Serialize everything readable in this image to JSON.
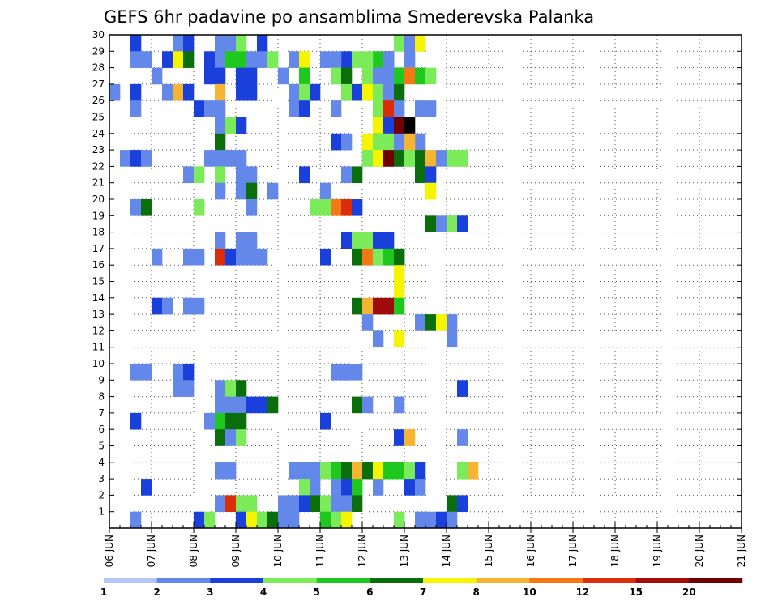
{
  "chart_data": {
    "type": "heatmap",
    "title": "GEFS 6hr padavine po ansamblima Smederevska Palanka",
    "xlabel": "",
    "ylabel": "",
    "x_tick_labels": [
      "06 JUN",
      "07 JUN",
      "08 JUN",
      "09 JUN",
      "10 JUN",
      "11 JUN",
      "12 JUN",
      "13 JUN",
      "14 JUN",
      "15 JUN",
      "16 JUN",
      "17 JUN",
      "18 JUN",
      "19 JUN",
      "20 JUN",
      "21 JUN"
    ],
    "y_tick_labels": [
      "1",
      "2",
      "3",
      "4",
      "5",
      "6",
      "7",
      "8",
      "9",
      "10",
      "11",
      "12",
      "13",
      "14",
      "15",
      "16",
      "17",
      "18",
      "19",
      "20",
      "21",
      "22",
      "23",
      "24",
      "25",
      "26",
      "27",
      "28",
      "29",
      "30"
    ],
    "xlim_days": [
      0,
      15
    ],
    "ylim_members": [
      0,
      30
    ],
    "steps_per_day": 4,
    "grid": "dotted",
    "colorbar": {
      "position": "bottom",
      "labels": [
        "1",
        "2",
        "3",
        "4",
        "5",
        "6",
        "7",
        "8",
        "10",
        "12",
        "15",
        "20"
      ],
      "colors": [
        "#b4c6f8",
        "#6488ea",
        "#1a40dc",
        "#7ceb5a",
        "#1ec81e",
        "#0a6e0a",
        "#f5f500",
        "#f5b432",
        "#f57814",
        "#dc2d0a",
        "#a00a0a",
        "#6e0000"
      ]
    },
    "cells": [
      [
        7,
        30,
        1
      ],
      [
        9,
        30,
        6
      ],
      [
        10,
        30,
        5
      ],
      [
        15,
        30,
        2
      ],
      [
        27,
        30,
        2
      ],
      [
        27,
        29,
        3
      ],
      [
        26,
        28,
        5
      ],
      [
        25,
        28,
        4
      ],
      [
        24,
        28,
        3
      ],
      [
        24,
        27,
        3
      ],
      [
        29,
        30,
        2
      ],
      [
        37,
        30,
        1
      ],
      [
        40,
        30,
        3
      ],
      [
        41,
        30,
        5
      ],
      [
        44,
        30,
        1
      ],
      [
        47,
        30,
        4
      ],
      [
        48,
        30,
        5
      ],
      [
        56,
        30,
        1
      ],
      [
        60,
        30,
        1
      ],
      [
        2,
        29,
        2
      ],
      [
        6,
        29,
        1
      ],
      [
        7,
        29,
        2
      ],
      [
        10,
        29,
        1
      ],
      [
        11,
        29,
        1
      ],
      [
        12,
        29,
        3
      ],
      [
        14,
        29,
        2
      ],
      [
        28,
        29,
        1
      ],
      [
        29,
        29,
        6
      ],
      [
        2,
        28,
        1
      ],
      [
        3,
        28,
        1
      ],
      [
        5,
        28,
        2
      ],
      [
        6,
        28,
        6
      ],
      [
        7,
        28,
        5
      ],
      [
        9,
        28,
        2
      ],
      [
        10,
        28,
        1
      ],
      [
        11,
        28,
        4
      ],
      [
        12,
        28,
        4
      ],
      [
        13,
        28,
        1
      ],
      [
        14,
        28,
        1
      ],
      [
        15,
        28,
        3
      ],
      [
        17,
        28,
        1
      ],
      [
        18,
        28,
        6
      ],
      [
        26,
        28,
        1
      ],
      [
        28,
        28,
        1
      ],
      [
        22,
        28,
        2
      ],
      [
        23,
        28,
        3
      ],
      [
        21,
        28,
        1
      ],
      [
        20,
        28,
        1
      ],
      [
        4,
        27,
        1
      ],
      [
        9,
        27,
        2
      ],
      [
        10,
        27,
        2
      ],
      [
        12,
        27,
        2
      ],
      [
        13,
        27,
        2
      ],
      [
        18,
        27,
        4
      ],
      [
        16,
        27,
        1
      ],
      [
        21,
        27,
        3
      ],
      [
        22,
        27,
        5
      ],
      [
        25,
        27,
        1
      ],
      [
        26,
        27,
        1
      ],
      [
        27,
        27,
        4
      ],
      [
        27,
        27,
        4
      ],
      [
        28,
        27,
        8
      ],
      [
        29,
        27,
        4
      ],
      [
        30,
        27,
        3
      ],
      [
        0,
        26,
        1
      ],
      [
        2,
        26,
        2
      ],
      [
        5,
        26,
        1
      ],
      [
        6,
        26,
        7
      ],
      [
        7,
        26,
        2
      ],
      [
        10,
        26,
        7
      ],
      [
        12,
        26,
        2
      ],
      [
        13,
        26,
        2
      ],
      [
        17,
        26,
        1
      ],
      [
        18,
        26,
        3
      ],
      [
        19,
        26,
        2
      ],
      [
        22,
        26,
        3
      ],
      [
        23,
        26,
        2
      ],
      [
        24,
        26,
        6
      ],
      [
        25,
        26,
        3
      ],
      [
        26,
        26,
        1
      ],
      [
        27,
        26,
        5
      ],
      [
        2,
        25,
        1
      ],
      [
        8,
        25,
        2
      ],
      [
        9,
        25,
        1
      ],
      [
        10,
        25,
        1
      ],
      [
        17,
        25,
        1
      ],
      [
        18,
        25,
        2
      ],
      [
        25,
        25,
        3
      ],
      [
        26,
        25,
        9
      ],
      [
        27,
        25,
        1
      ],
      [
        29,
        25,
        1
      ],
      [
        30,
        25,
        1
      ],
      [
        21,
        25,
        1
      ],
      [
        10,
        24,
        1
      ],
      [
        11,
        24,
        3
      ],
      [
        12,
        24,
        2
      ],
      [
        25,
        24,
        6
      ],
      [
        26,
        24,
        2
      ],
      [
        27,
        24,
        11
      ],
      [
        28,
        24,
        12
      ],
      [
        10,
        23,
        5
      ],
      [
        24,
        23,
        6
      ],
      [
        25,
        23,
        5
      ],
      [
        25,
        23,
        3
      ],
      [
        26,
        23,
        3
      ],
      [
        27,
        23,
        1
      ],
      [
        28,
        23,
        1
      ],
      [
        29,
        23,
        1
      ],
      [
        28,
        23,
        7
      ],
      [
        21,
        23,
        2
      ],
      [
        22,
        23,
        1
      ],
      [
        1,
        22,
        1
      ],
      [
        2,
        22,
        2
      ],
      [
        3,
        22,
        1
      ],
      [
        9,
        22,
        1
      ],
      [
        10,
        22,
        1
      ],
      [
        11,
        22,
        1
      ],
      [
        12,
        22,
        1
      ],
      [
        24,
        22,
        3
      ],
      [
        25,
        22,
        6
      ],
      [
        26,
        22,
        11
      ],
      [
        27,
        22,
        5
      ],
      [
        28,
        22,
        3
      ],
      [
        29,
        22,
        5
      ],
      [
        30,
        22,
        7
      ],
      [
        31,
        22,
        1
      ],
      [
        32,
        22,
        3
      ],
      [
        33,
        22,
        3
      ],
      [
        7,
        21,
        1
      ],
      [
        8,
        21,
        3
      ],
      [
        10,
        21,
        3
      ],
      [
        12,
        21,
        1
      ],
      [
        13,
        21,
        1
      ],
      [
        18,
        21,
        2
      ],
      [
        22,
        21,
        1
      ],
      [
        23,
        21,
        5
      ],
      [
        29,
        21,
        5
      ],
      [
        30,
        21,
        2
      ],
      [
        10,
        20,
        1
      ],
      [
        12,
        20,
        1
      ],
      [
        13,
        20,
        5
      ],
      [
        15,
        20,
        1
      ],
      [
        20,
        20,
        1
      ],
      [
        30,
        20,
        6
      ],
      [
        2,
        19,
        1
      ],
      [
        3,
        19,
        5
      ],
      [
        8,
        19,
        3
      ],
      [
        13,
        19,
        1
      ],
      [
        19,
        19,
        3
      ],
      [
        20,
        19,
        3
      ],
      [
        21,
        19,
        8
      ],
      [
        22,
        19,
        9
      ],
      [
        23,
        19,
        2
      ],
      [
        30,
        18,
        5
      ],
      [
        31,
        18,
        1
      ],
      [
        32,
        18,
        3
      ],
      [
        33,
        18,
        2
      ],
      [
        10,
        17,
        1
      ],
      [
        12,
        17,
        1
      ],
      [
        13,
        17,
        1
      ],
      [
        22,
        17,
        2
      ],
      [
        23,
        17,
        3
      ],
      [
        24,
        17,
        3
      ],
      [
        25,
        17,
        2
      ],
      [
        26,
        17,
        2
      ],
      [
        4,
        16,
        1
      ],
      [
        7,
        16,
        1
      ],
      [
        8,
        16,
        1
      ],
      [
        10,
        16,
        9
      ],
      [
        11,
        16,
        2
      ],
      [
        12,
        16,
        1
      ],
      [
        13,
        16,
        1
      ],
      [
        14,
        16,
        1
      ],
      [
        20,
        16,
        2
      ],
      [
        23,
        16,
        5
      ],
      [
        24,
        16,
        8
      ],
      [
        25,
        16,
        3
      ],
      [
        26,
        16,
        4
      ],
      [
        27,
        16,
        5
      ],
      [
        27,
        16,
        5
      ],
      [
        27,
        15,
        6
      ],
      [
        27,
        14,
        6
      ],
      [
        4,
        13,
        2
      ],
      [
        5,
        13,
        1
      ],
      [
        7,
        13,
        1
      ],
      [
        8,
        13,
        1
      ],
      [
        23,
        13,
        5
      ],
      [
        24,
        13,
        7
      ],
      [
        25,
        13,
        10
      ],
      [
        26,
        13,
        10
      ],
      [
        27,
        13,
        4
      ],
      [
        24,
        12,
        1
      ],
      [
        29,
        12,
        1
      ],
      [
        30,
        12,
        5
      ],
      [
        31,
        12,
        6
      ],
      [
        32,
        12,
        1
      ],
      [
        25,
        11,
        1
      ],
      [
        27,
        11,
        6
      ],
      [
        32,
        11,
        1
      ],
      [
        2,
        9,
        1
      ],
      [
        3,
        9,
        1
      ],
      [
        6,
        9,
        1
      ],
      [
        7,
        9,
        2
      ],
      [
        21,
        9,
        1
      ],
      [
        22,
        9,
        1
      ],
      [
        23,
        9,
        1
      ],
      [
        6,
        8,
        1
      ],
      [
        7,
        8,
        1
      ],
      [
        10,
        8,
        1
      ],
      [
        11,
        8,
        3
      ],
      [
        12,
        8,
        5
      ],
      [
        33,
        8,
        2
      ],
      [
        10,
        7,
        1
      ],
      [
        11,
        7,
        1
      ],
      [
        12,
        7,
        1
      ],
      [
        13,
        7,
        2
      ],
      [
        14,
        7,
        2
      ],
      [
        15,
        7,
        5
      ],
      [
        23,
        7,
        5
      ],
      [
        24,
        7,
        1
      ],
      [
        27,
        7,
        1
      ],
      [
        2,
        6,
        2
      ],
      [
        9,
        6,
        1
      ],
      [
        10,
        6,
        4
      ],
      [
        11,
        6,
        5
      ],
      [
        12,
        6,
        5
      ],
      [
        20,
        6,
        2
      ],
      [
        10,
        5,
        5
      ],
      [
        11,
        5,
        1
      ],
      [
        12,
        5,
        3
      ],
      [
        27,
        5,
        2
      ],
      [
        28,
        5,
        7
      ],
      [
        33,
        5,
        1
      ],
      [
        10,
        3,
        1
      ],
      [
        11,
        3,
        1
      ],
      [
        17,
        3,
        1
      ],
      [
        18,
        3,
        1
      ],
      [
        19,
        3,
        1
      ],
      [
        20,
        3,
        3
      ],
      [
        21,
        3,
        4
      ],
      [
        22,
        3,
        5
      ],
      [
        23,
        3,
        7
      ],
      [
        24,
        3,
        5
      ],
      [
        25,
        3,
        6
      ],
      [
        26,
        3,
        4
      ],
      [
        27,
        3,
        4
      ],
      [
        28,
        3,
        3
      ],
      [
        29,
        3,
        2
      ],
      [
        33,
        3,
        3
      ],
      [
        34,
        3,
        7
      ],
      [
        3,
        2,
        2
      ],
      [
        18,
        2,
        3
      ],
      [
        19,
        2,
        1
      ],
      [
        21,
        2,
        1
      ],
      [
        22,
        2,
        2
      ],
      [
        23,
        2,
        4
      ],
      [
        25,
        2,
        1
      ],
      [
        28,
        2,
        2
      ],
      [
        29,
        2,
        1
      ],
      [
        10,
        1,
        1
      ],
      [
        11,
        1,
        9
      ],
      [
        12,
        1,
        3
      ],
      [
        13,
        1,
        3
      ],
      [
        16,
        1,
        1
      ],
      [
        17,
        1,
        1
      ],
      [
        18,
        1,
        2
      ],
      [
        19,
        1,
        5
      ],
      [
        20,
        1,
        3
      ],
      [
        21,
        1,
        1
      ],
      [
        22,
        1,
        1
      ],
      [
        23,
        1,
        5
      ],
      [
        32,
        1,
        5
      ],
      [
        33,
        1,
        2
      ],
      [
        2,
        0,
        1
      ],
      [
        8,
        0,
        2
      ],
      [
        9,
        0,
        3
      ],
      [
        12,
        0,
        2
      ],
      [
        13,
        0,
        6
      ],
      [
        14,
        0,
        3
      ],
      [
        15,
        0,
        5
      ],
      [
        16,
        0,
        1
      ],
      [
        17,
        0,
        1
      ],
      [
        20,
        0,
        4
      ],
      [
        21,
        0,
        3
      ],
      [
        22,
        0,
        6
      ],
      [
        27,
        0,
        3
      ],
      [
        29,
        0,
        1
      ],
      [
        30,
        0,
        1
      ],
      [
        31,
        0,
        2
      ],
      [
        32,
        0,
        1
      ]
    ]
  }
}
